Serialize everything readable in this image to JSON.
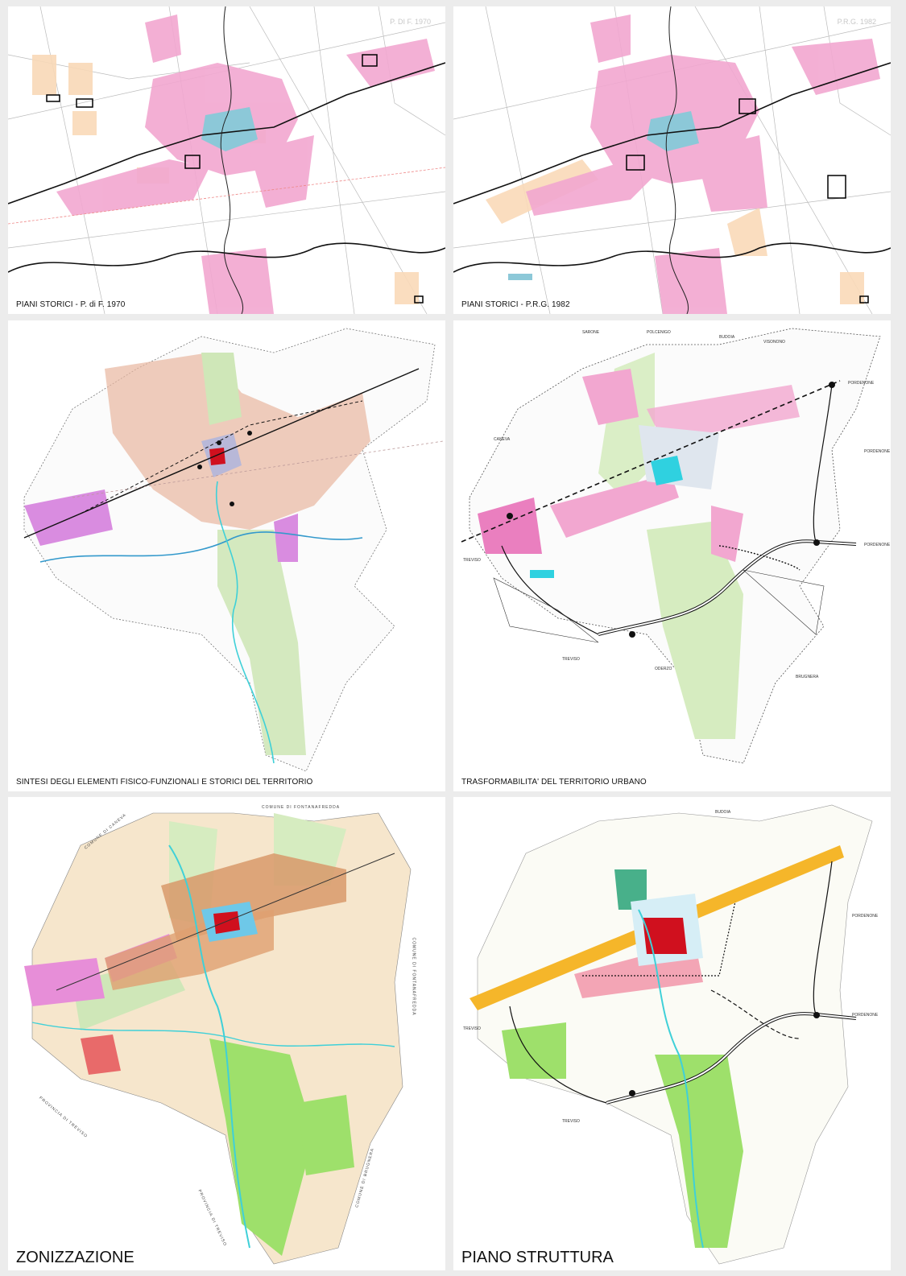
{
  "panels": {
    "p1970": {
      "caption": "PIANI STORICI - P. di F. 1970",
      "corner_label": "P. DI F. 1970"
    },
    "p1982": {
      "caption": "PIANI STORICI - P.R.G. 1982",
      "corner_label": "P.R.G. 1982"
    },
    "sintesi": {
      "caption": "SINTESI DEGLI ELEMENTI FISICO-FUNZIONALI E STORICI DEL TERRITORIO"
    },
    "trasformabilita": {
      "caption": "TRASFORMABILITA' DEL TERRITORIO URBANO",
      "places": {
        "sarone": "SARONE",
        "polcenigo": "POLCENIGO",
        "budoia": "BUDOIA",
        "visonono": "VISONONO",
        "pordenone_ne": "PORDENONE",
        "caneva": "CANEVA",
        "pordenone_e": "PORDENONE",
        "pordenone_se": "PORDENONE",
        "treviso_w": "TREVISO",
        "treviso_sw": "TREVISO",
        "oderzo": "ODERZO",
        "brugnera": "BRUGNERA"
      }
    },
    "zonizzazione": {
      "caption": "ZONIZZAZIONE",
      "borders": {
        "caneva": "COMUNE DI CANEVA",
        "fontanafredda_top": "COMUNE DI FONTANAFREDDA",
        "fontanafredda_right": "COMUNE DI FONTANAFREDDA",
        "treviso_left": "PROVINCIA DI TREVISO",
        "treviso_bottom": "PROVINCIA DI TREVISO",
        "brugnera": "COMUNE DI BRUGNERA"
      }
    },
    "struttura": {
      "caption": "PIANO STRUTTURA",
      "places": {
        "budoia": "BUDOIA",
        "pordenone_e": "PORDENONE",
        "pordenone_se": "PORDENONE",
        "treviso_w": "TREVISO",
        "treviso_sw": "TREVISO"
      }
    }
  },
  "colors": {
    "residential": "#f2a7d0",
    "historic_center": "#8cc8d8",
    "agricultural": "#f9d9b8",
    "green": "#c8e6a8",
    "bright_green": "#9ee06b",
    "industrial": "#e78ed8",
    "historic_red": "#d0101e",
    "strategic_orange": "#f5b62a",
    "roads": "#222222",
    "river": "#3fd0d8"
  }
}
